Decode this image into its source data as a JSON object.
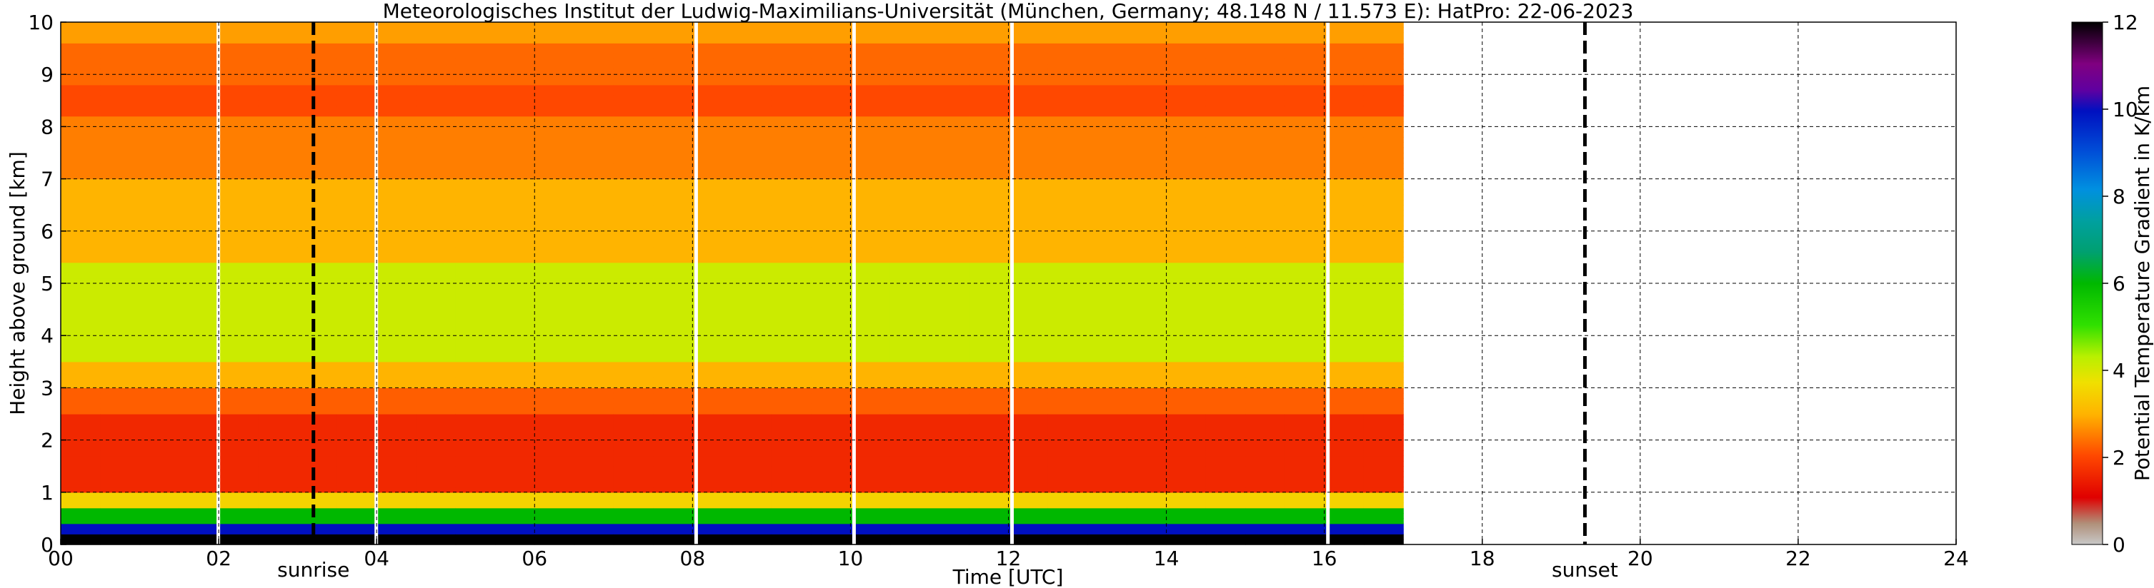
{
  "chart_data": {
    "type": "heatmap",
    "title": "Meteorologisches Institut der Ludwig-Maximilians-Universität (München, Germany; 48.148 N / 11.573 E):    HatPro: 22-06-2023",
    "xlabel": "Time [UTC]",
    "ylabel": "Height above ground [km]",
    "xlim": [
      0,
      24
    ],
    "ylim": [
      0,
      10
    ],
    "x_ticks": [
      "00",
      "02",
      "04",
      "06",
      "08",
      "10",
      "12",
      "14",
      "16",
      "18",
      "20",
      "22",
      "24"
    ],
    "y_ticks": [
      "0",
      "1",
      "2",
      "3",
      "4",
      "5",
      "6",
      "7",
      "8",
      "9",
      "10"
    ],
    "grid": true,
    "data_end_hour": 17.0,
    "data_gaps_hour": [
      2.0,
      4.0,
      8.05,
      10.05,
      12.05,
      16.05
    ],
    "events": [
      {
        "label": "sunrise",
        "hour": 3.2
      },
      {
        "label": "sunset",
        "hour": 19.3
      }
    ],
    "colorbar": {
      "label": "Potential Temperature Gradient in K/km",
      "range": [
        0,
        12
      ],
      "ticks": [
        "0",
        "2",
        "4",
        "6",
        "8",
        "10",
        "12"
      ]
    },
    "profile_k_per_km": [
      {
        "from_km": 0.0,
        "to_km": 0.25,
        "value": 12
      },
      {
        "from_km": 0.25,
        "to_km": 0.4,
        "value": 10
      },
      {
        "from_km": 0.4,
        "to_km": 0.7,
        "value": 6
      },
      {
        "from_km": 0.7,
        "to_km": 1.0,
        "value": 3.5
      },
      {
        "from_km": 1.0,
        "to_km": 2.5,
        "value": 1.6
      },
      {
        "from_km": 2.5,
        "to_km": 3.0,
        "value": 2.2
      },
      {
        "from_km": 3.0,
        "to_km": 3.5,
        "value": 3.0
      },
      {
        "from_km": 3.5,
        "to_km": 5.4,
        "value": 4.1
      },
      {
        "from_km": 5.4,
        "to_km": 7.0,
        "value": 3.0
      },
      {
        "from_km": 7.0,
        "to_km": 8.2,
        "value": 2.5
      },
      {
        "from_km": 8.2,
        "to_km": 8.8,
        "value": 2.0
      },
      {
        "from_km": 8.8,
        "to_km": 9.6,
        "value": 2.3
      },
      {
        "from_km": 9.6,
        "to_km": 10.0,
        "value": 2.8
      }
    ]
  }
}
